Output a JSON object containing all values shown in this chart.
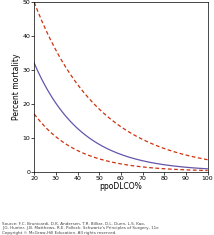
{
  "title": "",
  "xlabel": "ppoDLCO%",
  "ylabel": "Percent mortality",
  "xlim": [
    20,
    100
  ],
  "ylim": [
    0,
    50
  ],
  "xticks": [
    20,
    30,
    40,
    50,
    60,
    70,
    80,
    90,
    100
  ],
  "yticks": [
    0,
    10,
    20,
    30,
    40,
    50
  ],
  "main_color": "#6655aa",
  "ci_color": "#cc3311",
  "source_text": "Source: F.C. Brunicardi, D.K. Andersen, T.R. Billiar, D.L. Dunn, L.S. Kao,\nJ.G. Hunter, J.B. Matthews, R.E. Pollock: Schwartz's Principles of Surgery, 11e\nCopyright © McGraw-Hill Education. All rights reserved.",
  "figsize": [
    2.14,
    2.35
  ],
  "dpi": 100,
  "main_y_at_20": 32,
  "main_y_at_100": 0.8,
  "upper_y_at_20": 50,
  "upper_y_at_100": 3.5,
  "lower_y_at_20": 17,
  "lower_y_at_100": 0.3
}
